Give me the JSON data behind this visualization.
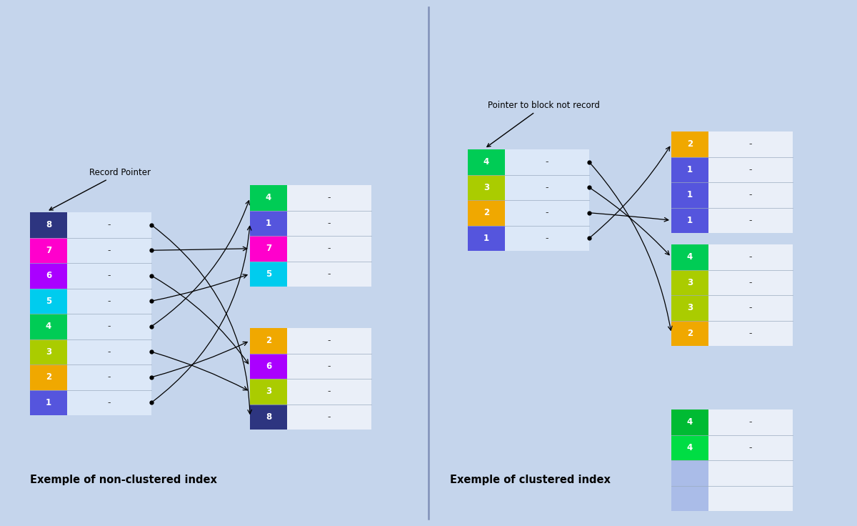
{
  "bg": "#c5d5ec",
  "left_title": "Exemple of non-clustered index",
  "right_title": "Exemple of clustered index",
  "left_label": "Record Pointer",
  "right_label": "Pointer to block not record",
  "nc_index": [
    {
      "v": "1",
      "c": "#5555dd"
    },
    {
      "v": "2",
      "c": "#f0a800"
    },
    {
      "v": "3",
      "c": "#aacc00"
    },
    {
      "v": "4",
      "c": "#00cc55"
    },
    {
      "v": "5",
      "c": "#00ccee"
    },
    {
      "v": "6",
      "c": "#aa00ff"
    },
    {
      "v": "7",
      "c": "#ff00cc"
    },
    {
      "v": "8",
      "c": "#2d3580"
    }
  ],
  "nc_block1": [
    {
      "v": "5",
      "c": "#00ccee"
    },
    {
      "v": "7",
      "c": "#ff00cc"
    },
    {
      "v": "1",
      "c": "#5555dd"
    },
    {
      "v": "4",
      "c": "#00cc55"
    }
  ],
  "nc_block2": [
    {
      "v": "8",
      "c": "#2d3580"
    },
    {
      "v": "3",
      "c": "#aacc00"
    },
    {
      "v": "6",
      "c": "#aa00ff"
    },
    {
      "v": "2",
      "c": "#f0a800"
    }
  ],
  "cl_index": [
    {
      "v": "1",
      "c": "#5555dd"
    },
    {
      "v": "2",
      "c": "#f0a800"
    },
    {
      "v": "3",
      "c": "#aacc00"
    },
    {
      "v": "4",
      "c": "#00cc55"
    }
  ],
  "cl_block1": [
    {
      "v": "1",
      "c": "#5555dd"
    },
    {
      "v": "1",
      "c": "#5555dd"
    },
    {
      "v": "1",
      "c": "#5555dd"
    },
    {
      "v": "2",
      "c": "#f0a800"
    }
  ],
  "cl_block2": [
    {
      "v": "2",
      "c": "#f0a800"
    },
    {
      "v": "3",
      "c": "#aacc00"
    },
    {
      "v": "3",
      "c": "#aacc00"
    },
    {
      "v": "4",
      "c": "#00cc55"
    }
  ],
  "cl_block3": [
    {
      "v": "4",
      "c": "#00dd44"
    },
    {
      "v": "4",
      "c": "#00bb33"
    }
  ],
  "rh": 0.355,
  "c1": 0.52,
  "c2": 1.18
}
